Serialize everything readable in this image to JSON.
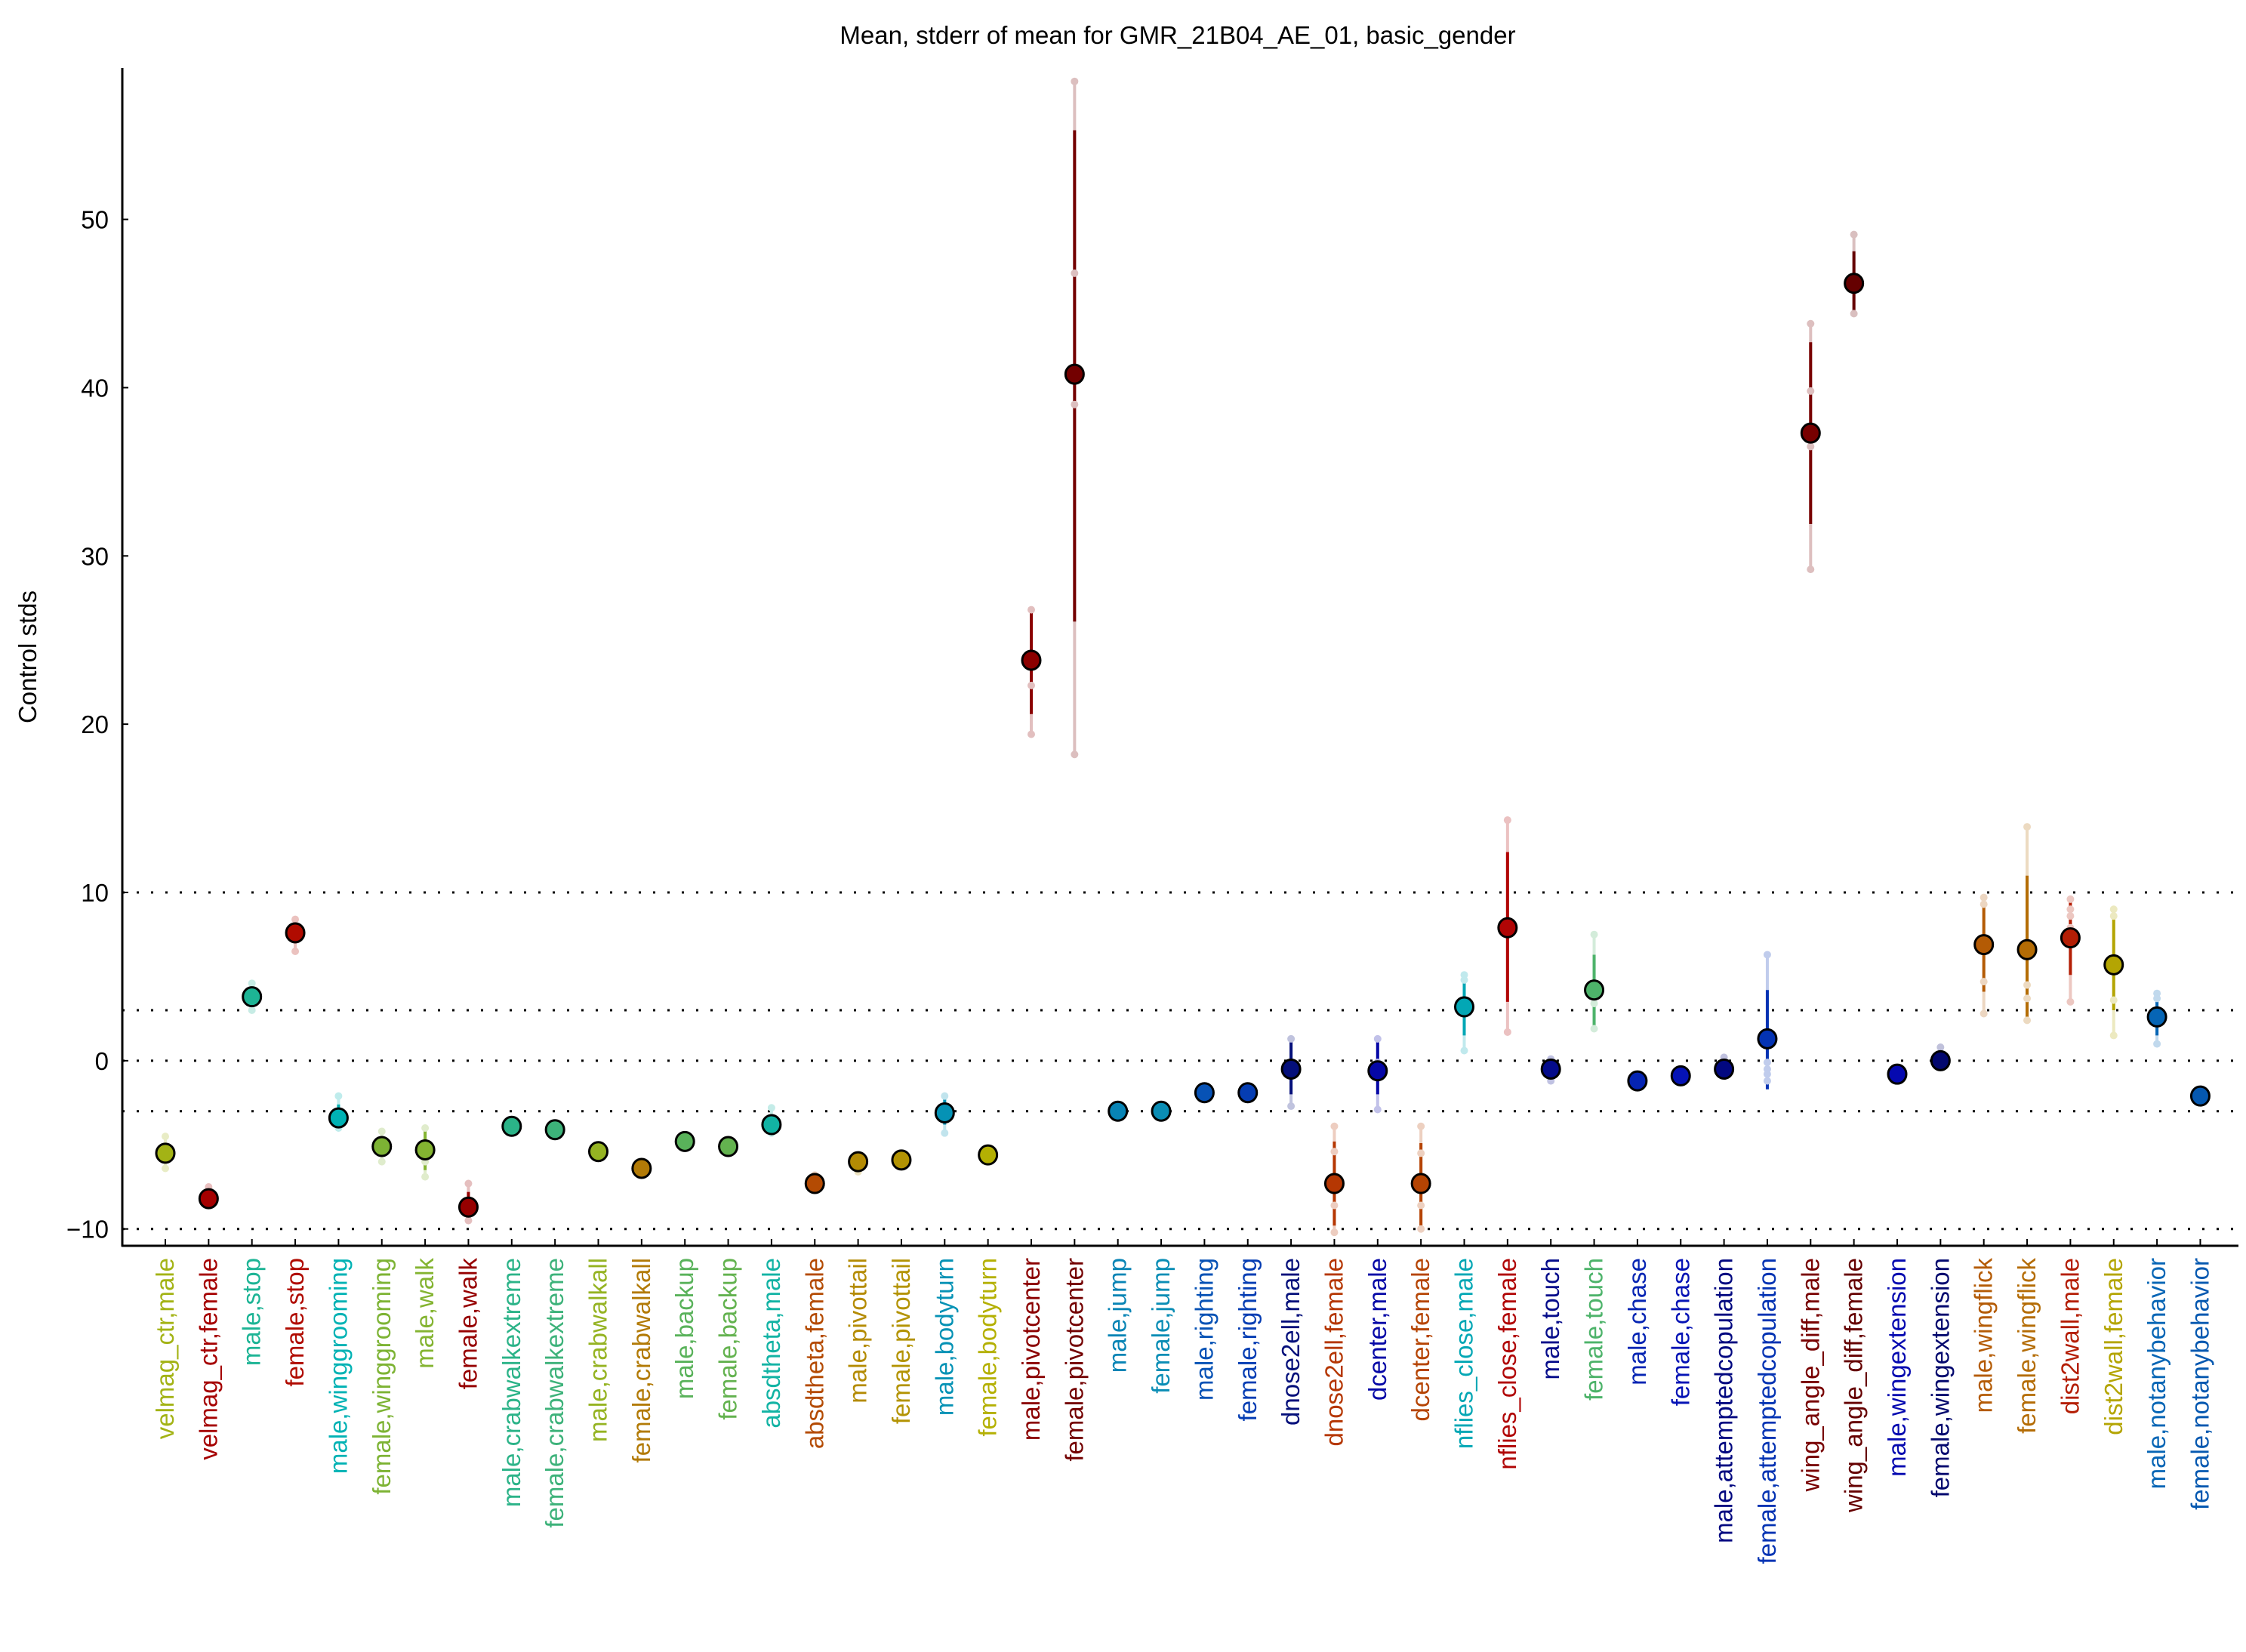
{
  "chart_data": {
    "type": "scatter",
    "title": "Mean, stderr of mean for GMR_21B04_AE_01, basic_gender",
    "xlabel": "",
    "ylabel": "Control stds",
    "ylim": [
      -11,
      59
    ],
    "yticks": [
      -10,
      0,
      10,
      20,
      30,
      40,
      50
    ],
    "ytick_labels": [
      "−10",
      "0",
      "10",
      "20",
      "30",
      "40",
      "50"
    ],
    "reference_lines": [
      10,
      3,
      0,
      -3,
      -10
    ],
    "grid": false,
    "legend": "none",
    "points": [
      {
        "label": "velmag_ctr,male",
        "color": "#a3b315",
        "mean": -5.5,
        "sem": [
          -5.9,
          -5.0
        ],
        "range": [
          -6.4,
          -4.5
        ],
        "extra": []
      },
      {
        "label": "velmag_ctr,female",
        "color": "#a50000",
        "mean": -8.2,
        "sem": [
          -8.6,
          -7.8
        ],
        "range": [
          -8.6,
          -7.5
        ],
        "extra": []
      },
      {
        "label": "male,stop",
        "color": "#1db495",
        "mean": 3.8,
        "sem": [
          3.4,
          4.2
        ],
        "range": [
          3.0,
          4.6
        ],
        "extra": []
      },
      {
        "label": "female,stop",
        "color": "#b00b00",
        "mean": 7.6,
        "sem": [
          7.0,
          8.1
        ],
        "range": [
          6.5,
          8.4
        ],
        "extra": []
      },
      {
        "label": "male,winggrooming",
        "color": "#00b2b4",
        "mean": -3.4,
        "sem": [
          -4.0,
          -2.6
        ],
        "range": [
          -4.0,
          -2.1
        ],
        "extra": []
      },
      {
        "label": "female,winggrooming",
        "color": "#7db334",
        "mean": -5.1,
        "sem": [
          -5.4,
          -4.7
        ],
        "range": [
          -6.0,
          -4.2
        ],
        "extra": []
      },
      {
        "label": "male,walk",
        "color": "#84b431",
        "mean": -5.3,
        "sem": [
          -6.5,
          -4.0
        ],
        "range": [
          -6.9,
          -4.0
        ],
        "extra": [
          -6.0
        ]
      },
      {
        "label": "female,walk",
        "color": "#960000",
        "mean": -8.7,
        "sem": [
          -9.3,
          -7.8
        ],
        "range": [
          -9.5,
          -7.3
        ],
        "extra": []
      },
      {
        "label": "male,crabwalkextreme",
        "color": "#2bb388",
        "mean": -3.9,
        "sem": [
          -4.1,
          -3.6
        ],
        "range": [
          -4.1,
          -3.6
        ],
        "extra": []
      },
      {
        "label": "female,crabwalkextreme",
        "color": "#3db27a",
        "mean": -4.1,
        "sem": [
          -4.3,
          -3.9
        ],
        "range": [
          -4.3,
          -3.9
        ],
        "extra": []
      },
      {
        "label": "male,crabwalkall",
        "color": "#95b322",
        "mean": -5.4,
        "sem": [
          -5.6,
          -5.2
        ],
        "range": [
          -5.6,
          -5.0
        ],
        "extra": []
      },
      {
        "label": "female,crabwalkall",
        "color": "#b27a06",
        "mean": -6.4,
        "sem": [
          -6.6,
          -6.2
        ],
        "range": [
          -6.6,
          -6.2
        ],
        "extra": []
      },
      {
        "label": "male,backup",
        "color": "#59b25a",
        "mean": -4.8,
        "sem": [
          -5.0,
          -4.6
        ],
        "range": [
          -5.0,
          -4.6
        ],
        "extra": []
      },
      {
        "label": "female,backup",
        "color": "#63b24f",
        "mean": -5.1,
        "sem": [
          -5.3,
          -4.9
        ],
        "range": [
          -5.3,
          -4.9
        ],
        "extra": []
      },
      {
        "label": "absdtheta,male",
        "color": "#12b3a4",
        "mean": -3.8,
        "sem": [
          -4.3,
          -3.2
        ],
        "range": [
          -4.3,
          -2.8
        ],
        "extra": []
      },
      {
        "label": "absdtheta,female",
        "color": "#b44b03",
        "mean": -7.3,
        "sem": [
          -7.5,
          -7.0
        ],
        "range": [
          -7.5,
          -6.8
        ],
        "extra": []
      },
      {
        "label": "male,pivottail",
        "color": "#b48b04",
        "mean": -6.0,
        "sem": [
          -6.3,
          -5.7
        ],
        "range": [
          -6.6,
          -5.6
        ],
        "extra": []
      },
      {
        "label": "female,pivottail",
        "color": "#b39303",
        "mean": -5.9,
        "sem": [
          -6.1,
          -5.7
        ],
        "range": [
          -6.1,
          -5.7
        ],
        "extra": []
      },
      {
        "label": "male,bodyturn",
        "color": "#0592b5",
        "mean": -3.1,
        "sem": [
          -3.8,
          -2.2
        ],
        "range": [
          -4.3,
          -2.1
        ],
        "extra": []
      },
      {
        "label": "female,bodyturn",
        "color": "#b4b003",
        "mean": -5.6,
        "sem": [
          -5.8,
          -5.4
        ],
        "range": [
          -5.8,
          -5.4
        ],
        "extra": []
      },
      {
        "label": "male,pivotcenter",
        "color": "#8b0000",
        "mean": 23.8,
        "sem": [
          20.6,
          27.0
        ],
        "range": [
          19.4,
          26.8
        ],
        "extra": [
          22.3
        ]
      },
      {
        "label": "female,pivotcenter",
        "color": "#730000",
        "mean": 40.8,
        "sem": [
          26.1,
          55.3
        ],
        "range": [
          18.2,
          58.2
        ],
        "extra": [
          46.8,
          39.0
        ]
      },
      {
        "label": "male,jump",
        "color": "#0884b5",
        "mean": -3.0,
        "sem": [
          -3.2,
          -2.8
        ],
        "range": [
          -3.2,
          -2.8
        ],
        "extra": []
      },
      {
        "label": "female,jump",
        "color": "#0a8db5",
        "mean": -3.0,
        "sem": [
          -3.2,
          -2.8
        ],
        "range": [
          -3.2,
          -2.8
        ],
        "extra": []
      },
      {
        "label": "male,righting",
        "color": "#0752b5",
        "mean": -1.9,
        "sem": [
          -2.1,
          -1.6
        ],
        "range": [
          -2.1,
          -1.5
        ],
        "extra": []
      },
      {
        "label": "female,righting",
        "color": "#053db3",
        "mean": -1.9,
        "sem": [
          -2.1,
          -1.7
        ],
        "range": [
          -2.1,
          -1.7
        ],
        "extra": []
      },
      {
        "label": "dnose2ell,male",
        "color": "#040f7a",
        "mean": -0.5,
        "sem": [
          -2.0,
          1.1
        ],
        "range": [
          -2.7,
          1.3
        ],
        "extra": [
          -0.1
        ]
      },
      {
        "label": "dnose2ell,female",
        "color": "#b53703",
        "mean": -7.3,
        "sem": [
          -9.8,
          -4.8
        ],
        "range": [
          -10.2,
          -3.9
        ],
        "extra": [
          -5.4,
          -8.6
        ]
      },
      {
        "label": "dcenter,male",
        "color": "#0507a6",
        "mean": -0.6,
        "sem": [
          -2.0,
          1.1
        ],
        "range": [
          -2.9,
          1.3
        ],
        "extra": [
          -0.1
        ]
      },
      {
        "label": "dcenter,female",
        "color": "#b54403",
        "mean": -7.3,
        "sem": [
          -9.9,
          -4.9
        ],
        "range": [
          -10.0,
          -3.9
        ],
        "extra": [
          -5.5,
          -8.6
        ]
      },
      {
        "label": "nflies_close,male",
        "color": "#03a7b5",
        "mean": 3.2,
        "sem": [
          1.5,
          5.1
        ],
        "range": [
          0.6,
          5.1
        ],
        "extra": [
          4.8
        ]
      },
      {
        "label": "nflies_close,female",
        "color": "#b00505",
        "mean": 7.9,
        "sem": [
          3.5,
          12.4
        ],
        "range": [
          1.7,
          14.3
        ],
        "extra": []
      },
      {
        "label": "male,touch",
        "color": "#040b8a",
        "mean": -0.5,
        "sem": [
          -0.8,
          0.0
        ],
        "range": [
          -1.2,
          0.1
        ],
        "extra": []
      },
      {
        "label": "female,touch",
        "color": "#4db36a",
        "mean": 4.2,
        "sem": [
          2.1,
          6.3
        ],
        "range": [
          1.9,
          7.5
        ],
        "extra": [
          3.4
        ]
      },
      {
        "label": "male,chase",
        "color": "#0524b3",
        "mean": -1.2,
        "sem": [
          -1.4,
          -1.0
        ],
        "range": [
          -1.4,
          -1.0
        ],
        "extra": []
      },
      {
        "label": "female,chase",
        "color": "#0513b5",
        "mean": -0.9,
        "sem": [
          -1.1,
          -0.7
        ],
        "range": [
          -1.1,
          -0.7
        ],
        "extra": []
      },
      {
        "label": "male,attemptedcopulation",
        "color": "#020880",
        "mean": -0.5,
        "sem": [
          -0.7,
          0.0
        ],
        "range": [
          -0.7,
          0.2
        ],
        "extra": []
      },
      {
        "label": "female,attemptedcopulation",
        "color": "#0433b3",
        "mean": 1.3,
        "sem": [
          -1.7,
          4.2
        ],
        "range": [
          -1.2,
          6.3
        ],
        "extra": [
          -0.1,
          -0.5,
          -0.8
        ]
      },
      {
        "label": "wing_angle_diff,male",
        "color": "#780000",
        "mean": 37.3,
        "sem": [
          31.9,
          42.7
        ],
        "range": [
          29.2,
          43.8
        ],
        "extra": [
          39.8,
          36.5
        ]
      },
      {
        "label": "wing_angle_diff,female",
        "color": "#650000",
        "mean": 46.2,
        "sem": [
          44.3,
          48.1
        ],
        "range": [
          44.4,
          49.1
        ],
        "extra": []
      },
      {
        "label": "male,wingextension",
        "color": "#0509b0",
        "mean": -0.8,
        "sem": [
          -1.0,
          -0.6
        ],
        "range": [
          -1.0,
          -0.6
        ],
        "extra": []
      },
      {
        "label": "female,wingextension",
        "color": "#03086e",
        "mean": 0.0,
        "sem": [
          -0.2,
          0.3
        ],
        "range": [
          -0.2,
          0.8
        ],
        "extra": []
      },
      {
        "label": "male,wingflick",
        "color": "#b45b05",
        "mean": 6.9,
        "sem": [
          4.1,
          9.7
        ],
        "range": [
          2.8,
          9.7
        ],
        "extra": [
          9.3,
          4.7
        ]
      },
      {
        "label": "female,wingflick",
        "color": "#b46c05",
        "mean": 6.6,
        "sem": [
          2.2,
          11.0
        ],
        "range": [
          2.4,
          13.9
        ],
        "extra": [
          4.5,
          3.7
        ]
      },
      {
        "label": "dist2wall,male",
        "color": "#b41e05",
        "mean": 7.3,
        "sem": [
          5.1,
          9.6
        ],
        "range": [
          3.5,
          9.6
        ],
        "extra": [
          9.0,
          8.6,
          7.9
        ]
      },
      {
        "label": "dist2wall,female",
        "color": "#b4a503",
        "mean": 5.7,
        "sem": [
          3.0,
          8.9
        ],
        "range": [
          1.5,
          9.0
        ],
        "extra": [
          8.6,
          3.6
        ]
      },
      {
        "label": "male,notanybehavior",
        "color": "#0665b5",
        "mean": 2.6,
        "sem": [
          1.5,
          4.0
        ],
        "range": [
          1.0,
          4.0
        ],
        "extra": [
          3.7
        ]
      },
      {
        "label": "female,notanybehavior",
        "color": "#0558b0",
        "mean": -2.1,
        "sem": [
          -2.3,
          -1.9
        ],
        "range": [
          -2.3,
          -1.9
        ],
        "extra": []
      }
    ]
  }
}
